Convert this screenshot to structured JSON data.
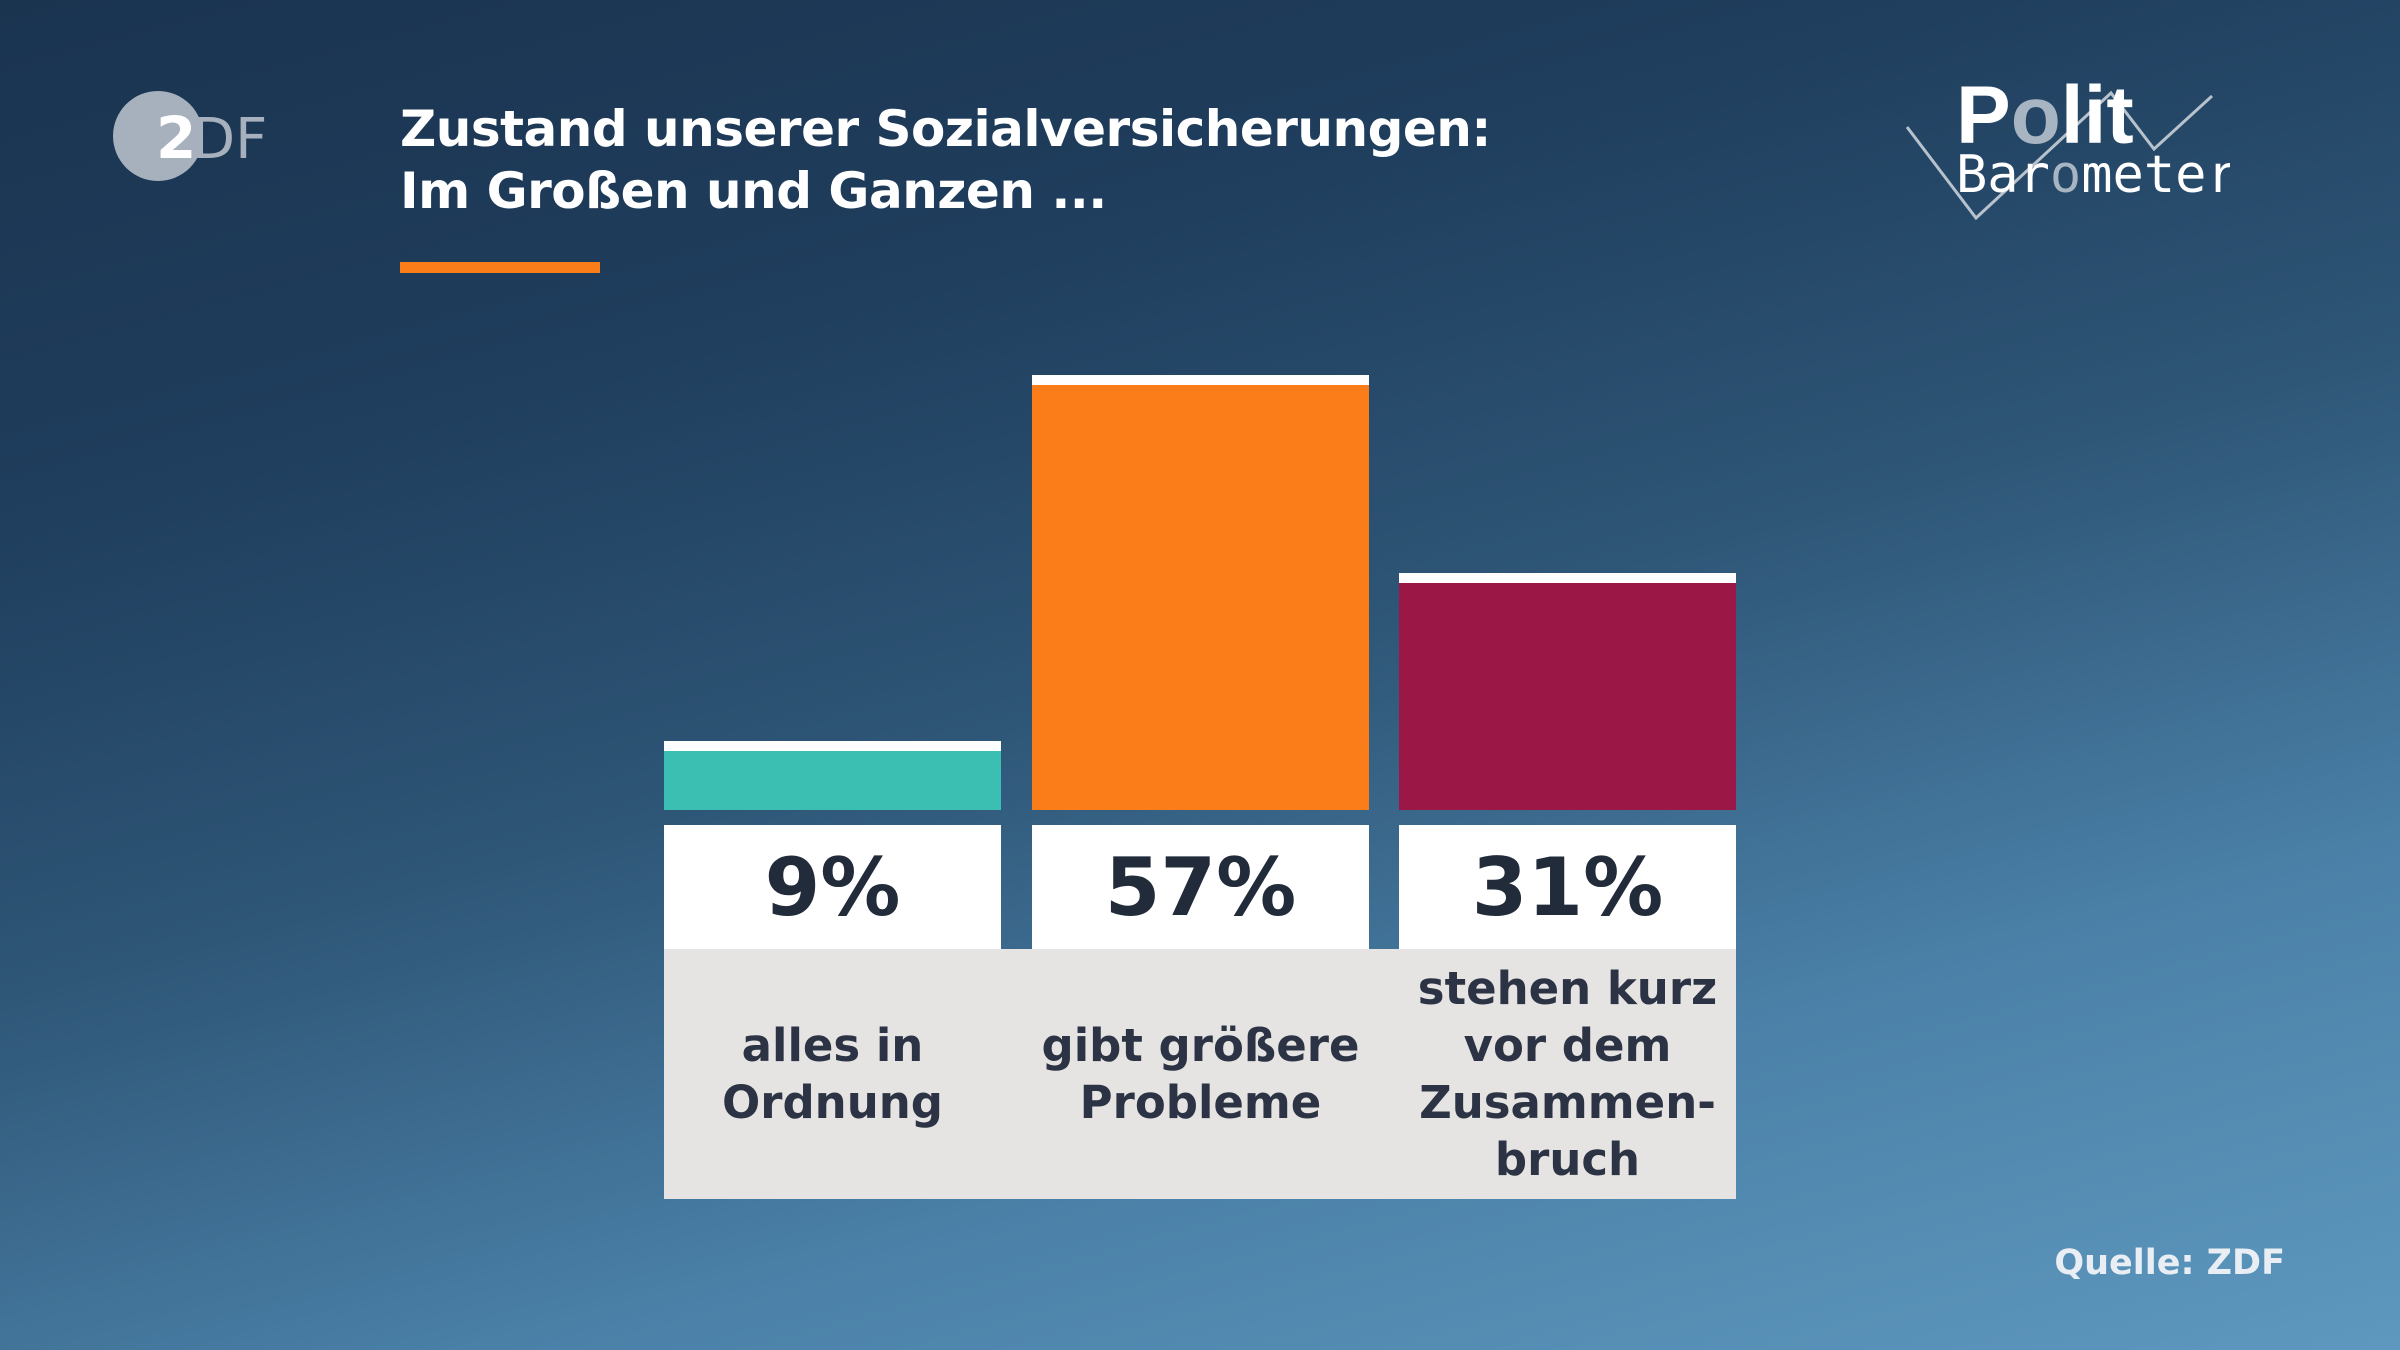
{
  "header": {
    "title_line1": "Zustand unserer Sozialversicherungen:",
    "title_line2": "Im Großen und Ganzen ...",
    "accent_color": "#fa7d19"
  },
  "logos": {
    "broadcaster": "ZDF",
    "program_line1": "Polit",
    "program_line2": "Barometer"
  },
  "chart_data": {
    "type": "bar",
    "title": "Zustand unserer Sozialversicherungen: Im Großen und Ganzen ...",
    "categories": [
      [
        "alles in",
        "Ordnung"
      ],
      [
        "gibt größere",
        "Probleme"
      ],
      [
        "stehen kurz",
        "vor dem",
        "Zusammen-",
        "bruch"
      ]
    ],
    "values": [
      9,
      57,
      31
    ],
    "value_labels": [
      "9%",
      "57%",
      "31%"
    ],
    "colors": [
      "#3cbfb3",
      "#fa7d19",
      "#9a1746"
    ],
    "unit": "%",
    "ylim": [
      0,
      57
    ],
    "grid": false
  },
  "footer": {
    "source": "Quelle: ZDF"
  }
}
